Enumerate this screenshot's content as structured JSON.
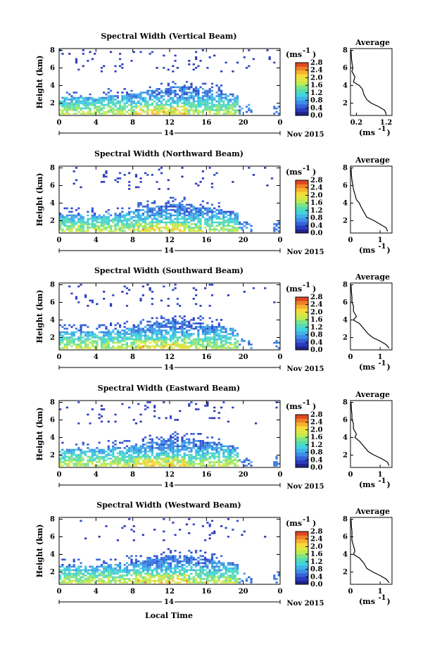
{
  "figure": {
    "xlabel": "Local Time",
    "date_label": "Nov 2015",
    "day_label": "14",
    "cbar_unit": "(ms",
    "cbar_exp": "-1",
    "avg_title": "Average",
    "avg_unit": "(ms",
    "avg_exp": "-1",
    "ylabel": "Height (km)"
  },
  "chart_data": [
    {
      "type": "heatmap",
      "title": "Spectral Width (Vertical Beam)",
      "xlabel": "Local Time",
      "ylabel": "Height (km)",
      "x_ticks": [
        "0",
        "4",
        "8",
        "12",
        "16",
        "20",
        "0"
      ],
      "xlim": [
        0,
        24
      ],
      "y_ticks": [
        "2",
        "4",
        "6",
        "8"
      ],
      "ylim": [
        0.6,
        8.2
      ],
      "colorbar": {
        "label": "(ms-1)",
        "ticks": [
          "0.0",
          "0.4",
          "0.8",
          "1.2",
          "1.6",
          "2.0",
          "2.4",
          "2.8"
        ],
        "range": [
          0,
          2.8
        ]
      },
      "average_profile": {
        "title": "Average",
        "xlabel": "(ms-1)",
        "x_ticks": [
          "0.2",
          "1.2"
        ],
        "xlim": [
          0,
          1.4
        ],
        "height_km": [
          0.8,
          1.2,
          1.6,
          2.0,
          2.4,
          3.0,
          3.6,
          4.0,
          4.4,
          5.0,
          5.6,
          6.0,
          6.6,
          7.2,
          8.0
        ],
        "width_ms": [
          1.2,
          1.15,
          0.95,
          0.7,
          0.55,
          0.45,
          0.4,
          0.3,
          0.1,
          0.15,
          0.05,
          0.08,
          0.05,
          0.03,
          0.02
        ]
      }
    },
    {
      "type": "heatmap",
      "title": "Spectral Width (Northward Beam)",
      "xlabel": "Local Time",
      "ylabel": "Height (km)",
      "x_ticks": [
        "0",
        "4",
        "8",
        "12",
        "16",
        "20",
        "0"
      ],
      "xlim": [
        0,
        24
      ],
      "y_ticks": [
        "2",
        "4",
        "6",
        "8"
      ],
      "ylim": [
        0.6,
        8.2
      ],
      "colorbar": {
        "label": "(ms-1)",
        "ticks": [
          "0.0",
          "0.4",
          "0.8",
          "1.2",
          "1.6",
          "2.0",
          "2.4",
          "2.8"
        ],
        "range": [
          0,
          2.8
        ]
      },
      "average_profile": {
        "title": "Average",
        "xlabel": "(ms-1)",
        "x_ticks": [
          "0",
          "1"
        ],
        "xlim": [
          0,
          1.4
        ],
        "height_km": [
          0.8,
          1.2,
          1.6,
          2.0,
          2.4,
          3.0,
          3.6,
          4.0,
          4.4,
          5.0,
          5.6,
          6.0,
          6.6,
          7.2,
          8.0
        ],
        "width_ms": [
          1.25,
          1.2,
          1.0,
          0.8,
          0.55,
          0.45,
          0.35,
          0.3,
          0.2,
          0.15,
          0.1,
          0.08,
          0.05,
          0.03,
          0.02
        ]
      }
    },
    {
      "type": "heatmap",
      "title": "Spectral Width (Southward Beam)",
      "xlabel": "Local Time",
      "ylabel": "Height (km)",
      "x_ticks": [
        "0",
        "4",
        "8",
        "12",
        "16",
        "20",
        "0"
      ],
      "xlim": [
        0,
        24
      ],
      "y_ticks": [
        "2",
        "4",
        "6",
        "8"
      ],
      "ylim": [
        0.6,
        8.2
      ],
      "colorbar": {
        "label": "(ms-1)",
        "ticks": [
          "0.0",
          "0.4",
          "0.8",
          "1.2",
          "1.6",
          "2.0",
          "2.4",
          "2.8"
        ],
        "range": [
          0,
          2.8
        ]
      },
      "average_profile": {
        "title": "Average",
        "xlabel": "(ms-1)",
        "x_ticks": [
          "0",
          "1"
        ],
        "xlim": [
          0,
          1.4
        ],
        "height_km": [
          0.8,
          1.2,
          1.6,
          2.0,
          2.4,
          3.0,
          3.6,
          4.0,
          4.4,
          5.0,
          5.6,
          6.0,
          6.6,
          7.2,
          8.0
        ],
        "width_ms": [
          1.3,
          1.2,
          1.0,
          0.75,
          0.6,
          0.45,
          0.3,
          0.1,
          0.2,
          0.1,
          0.1,
          0.05,
          0.05,
          0.03,
          0.02
        ]
      }
    },
    {
      "type": "heatmap",
      "title": "Spectral Width (Eastward Beam)",
      "xlabel": "Local Time",
      "ylabel": "Height (km)",
      "x_ticks": [
        "0",
        "4",
        "8",
        "12",
        "16",
        "20",
        "0"
      ],
      "xlim": [
        0,
        24
      ],
      "y_ticks": [
        "2",
        "4",
        "6",
        "8"
      ],
      "ylim": [
        0.6,
        8.2
      ],
      "colorbar": {
        "label": "(ms-1)",
        "ticks": [
          "0.0",
          "0.4",
          "0.8",
          "1.2",
          "1.6",
          "2.0",
          "2.4",
          "2.8"
        ],
        "range": [
          0,
          2.8
        ]
      },
      "average_profile": {
        "title": "Average",
        "xlabel": "(ms-1)",
        "x_ticks": [
          "0",
          "1"
        ],
        "xlim": [
          0,
          1.4
        ],
        "height_km": [
          0.8,
          1.2,
          1.6,
          2.0,
          2.4,
          3.0,
          3.6,
          4.0,
          4.4,
          5.0,
          5.6,
          6.0,
          6.6,
          7.2,
          8.0
        ],
        "width_ms": [
          1.3,
          1.25,
          1.05,
          0.8,
          0.6,
          0.45,
          0.3,
          0.15,
          0.2,
          0.1,
          0.1,
          0.05,
          0.05,
          0.03,
          0.02
        ]
      }
    },
    {
      "type": "heatmap",
      "title": "Spectral Width (Westward Beam)",
      "xlabel": "Local Time",
      "ylabel": "Height (km)",
      "x_ticks": [
        "0",
        "4",
        "8",
        "12",
        "16",
        "20",
        "0"
      ],
      "xlim": [
        0,
        24
      ],
      "y_ticks": [
        "2",
        "4",
        "6",
        "8"
      ],
      "ylim": [
        0.6,
        8.2
      ],
      "colorbar": {
        "label": "(ms-1)",
        "ticks": [
          "0.0",
          "0.4",
          "0.8",
          "1.2",
          "1.6",
          "2.0",
          "2.4",
          "2.8"
        ],
        "range": [
          0,
          2.8
        ]
      },
      "average_profile": {
        "title": "Average",
        "xlabel": "(ms-1)",
        "x_ticks": [
          "0",
          "1"
        ],
        "xlim": [
          0,
          1.4
        ],
        "height_km": [
          0.8,
          1.2,
          1.6,
          2.0,
          2.4,
          3.0,
          3.6,
          4.0,
          4.4,
          5.0,
          5.6,
          6.0,
          6.6,
          7.2,
          8.0
        ],
        "width_ms": [
          1.3,
          1.2,
          1.0,
          0.75,
          0.55,
          0.45,
          0.3,
          0.1,
          0.15,
          0.1,
          0.05,
          0.05,
          0.05,
          0.03,
          0.02
        ]
      }
    }
  ]
}
